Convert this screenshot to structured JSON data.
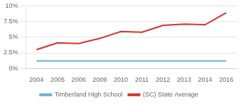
{
  "chart_data": {
    "type": "line",
    "categories": [
      "2004",
      "2005",
      "2006",
      "2009",
      "2010",
      "2011",
      "2012",
      "2013",
      "2014",
      "2016"
    ],
    "series": [
      {
        "name": "Timberland High School",
        "color": "#6baed6",
        "values": [
          1.2,
          1.2,
          1.2,
          1.2,
          1.2,
          1.2,
          1.2,
          1.2,
          1.2,
          1.2
        ]
      },
      {
        "name": "(SC) State Average",
        "color": "#d73027",
        "values": [
          3.0,
          4.1,
          4.0,
          4.8,
          5.9,
          5.8,
          6.9,
          7.1,
          7.0,
          8.9
        ]
      }
    ],
    "ylim": [
      0,
      10
    ],
    "yticks": [
      {
        "value": 0,
        "label": "0%"
      },
      {
        "value": 2.5,
        "label": "2.5%"
      },
      {
        "value": 5,
        "label": "5%"
      },
      {
        "value": 7.5,
        "label": "7.5%"
      },
      {
        "value": 10,
        "label": "10%"
      }
    ],
    "grid": true,
    "legend": "bottom"
  }
}
